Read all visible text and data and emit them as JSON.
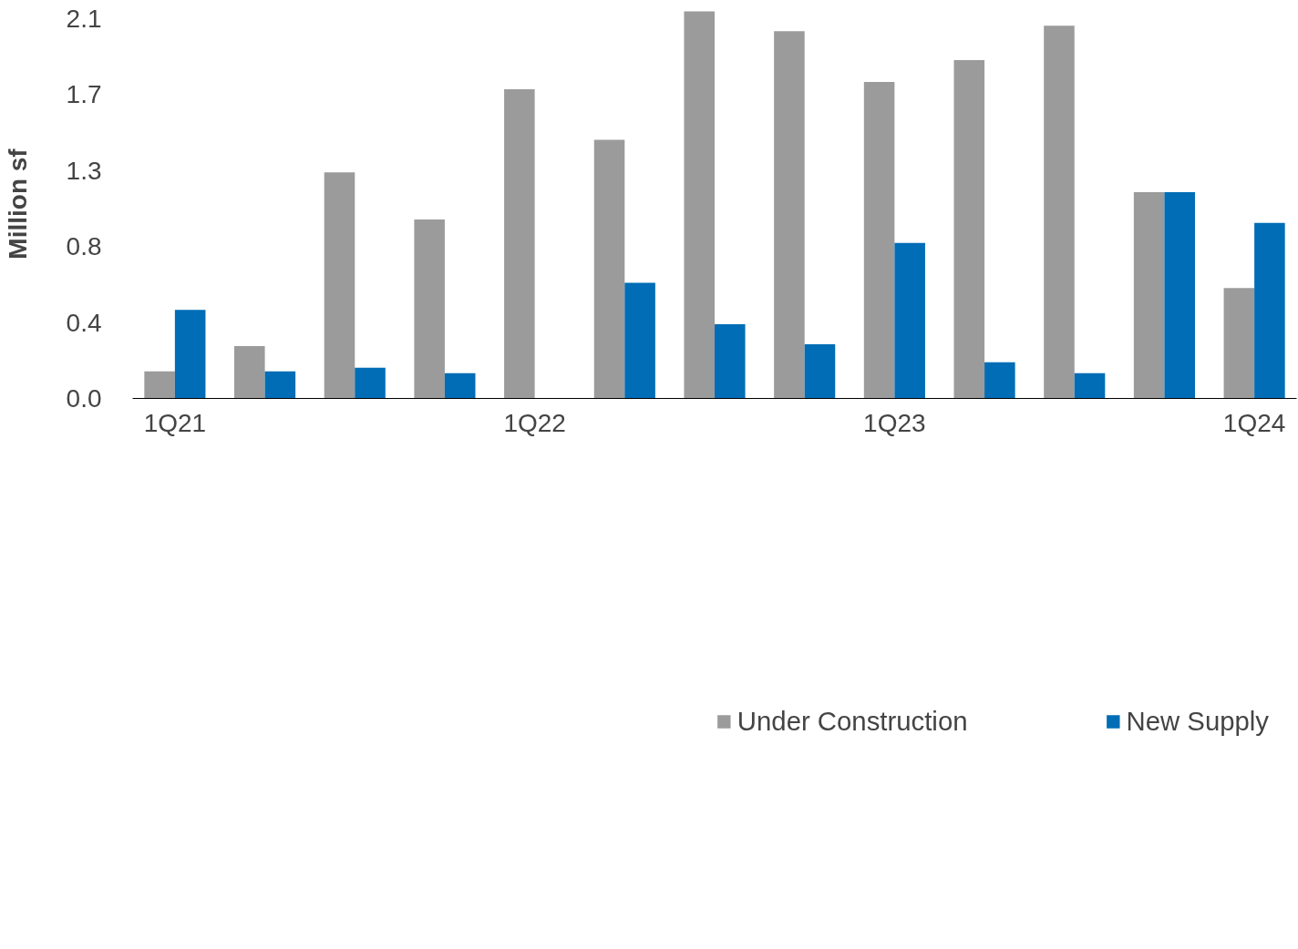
{
  "chart_data": {
    "type": "bar",
    "ylabel": "Million sf",
    "categories": [
      "1Q21",
      null,
      null,
      null,
      "1Q22",
      null,
      null,
      null,
      "1Q23",
      null,
      null,
      null,
      "1Q24"
    ],
    "series": [
      {
        "name": "Under Construction",
        "color": "#9b9b9b",
        "values": [
          0.15,
          0.29,
          1.25,
          0.99,
          1.71,
          1.43,
          2.14,
          2.03,
          1.75,
          1.87,
          2.06,
          1.14,
          0.61
        ]
      },
      {
        "name": "New Supply",
        "color": "#006db6",
        "values": [
          0.49,
          0.15,
          0.17,
          0.14,
          0,
          0.64,
          0.41,
          0.3,
          0.86,
          0.2,
          0.14,
          1.14,
          0.97
        ]
      }
    ],
    "ylim": [
      0,
      2.15
    ],
    "yticks": [
      {
        "value": 0,
        "label": "0.0"
      },
      {
        "value": 0.42,
        "label": "0.4"
      },
      {
        "value": 0.84,
        "label": "0.8"
      },
      {
        "value": 1.26,
        "label": "1.3"
      },
      {
        "value": 1.68,
        "label": "1.7"
      },
      {
        "value": 2.1,
        "label": "2.1"
      }
    ],
    "grid": false,
    "legend": "bottom"
  }
}
